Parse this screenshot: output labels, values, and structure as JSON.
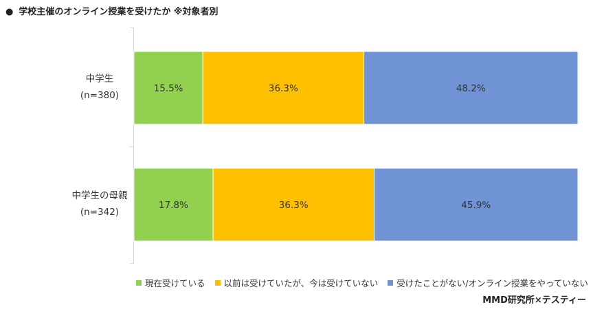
{
  "chart_title": "学校主催のオンライン授業を受けたか ※対象者別",
  "title_bullet": "●",
  "source": "MMD研究所×テスティー",
  "chart_data": {
    "type": "bar",
    "orientation": "horizontal",
    "stacked": true,
    "title": "学校主催のオンライン授業を受けたか ※対象者別",
    "categories": [
      {
        "line1": "中学生",
        "line2": "(n=380)"
      },
      {
        "line1": "中学生の母親",
        "line2": "(n=342)"
      }
    ],
    "series": [
      {
        "name": "現在受けている",
        "color": "#92d050",
        "values": [
          15.5,
          17.8
        ]
      },
      {
        "name": "以前は受けていたが、今は受けていない",
        "color": "#ffc000",
        "values": [
          36.3,
          36.3
        ]
      },
      {
        "name": "受けたことがない/オンライン授業をやっていない",
        "color": "#6f93d4",
        "values": [
          48.2,
          45.9
        ]
      }
    ],
    "value_suffix": "%",
    "xlim": [
      0,
      100
    ],
    "legend_position": "bottom",
    "grid": false
  }
}
